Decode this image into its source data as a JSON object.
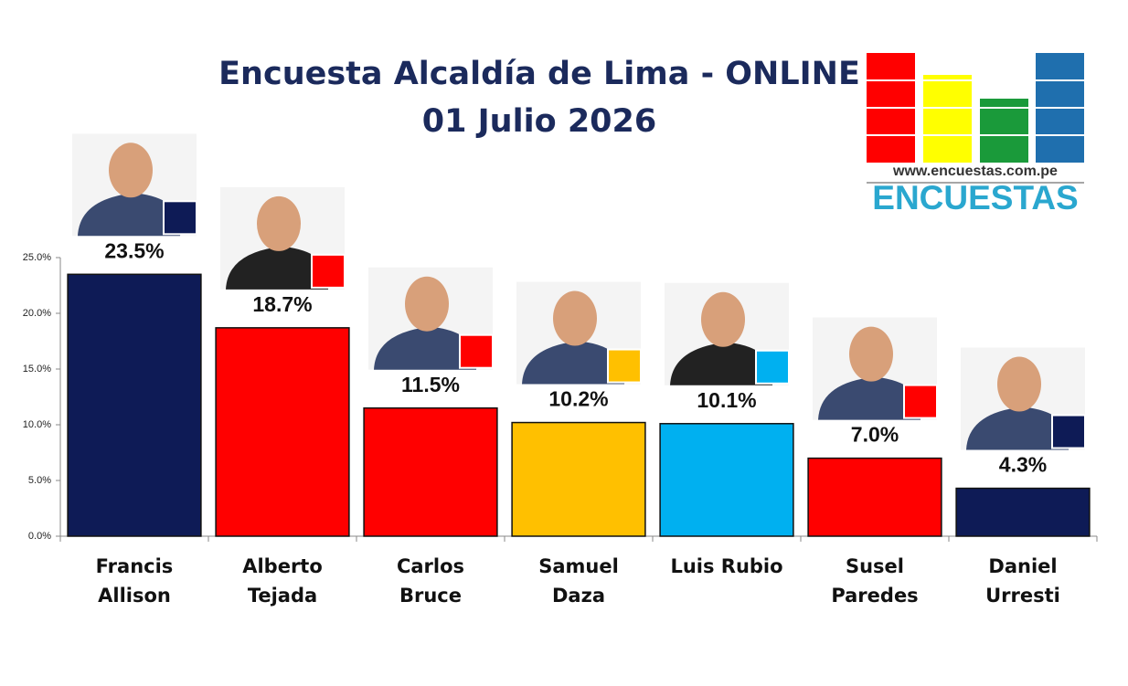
{
  "chart_data": {
    "type": "bar",
    "title": "Encuesta Alcaldía de Lima - ONLINE",
    "subtitle": "01 Julio 2026",
    "brand_url": "www.encuestas.com.pe",
    "brand_name": "ENCUESTAS",
    "categories": [
      "Francis Allison",
      "Alberto Tejada",
      "Carlos Bruce",
      "Samuel Daza",
      "Luis Rubio",
      "Susel Paredes",
      "Daniel Urresti"
    ],
    "values": [
      23.5,
      18.7,
      11.5,
      10.2,
      10.1,
      7.0,
      4.3
    ],
    "value_labels": [
      "23.5%",
      "18.7%",
      "11.5%",
      "10.2%",
      "10.1%",
      "7.0%",
      "4.3%"
    ],
    "colors": [
      "#0e1b56",
      "#ff0000",
      "#ff0000",
      "#ffc000",
      "#00b0f0",
      "#ff0000",
      "#0e1b56"
    ],
    "ylim": [
      0,
      25
    ],
    "yticks": [
      {
        "value": 0,
        "label": "0.0%"
      },
      {
        "value": 5,
        "label": "5.0%"
      },
      {
        "value": 10,
        "label": "10.0%"
      },
      {
        "value": 15,
        "label": "15.0%"
      },
      {
        "value": 20,
        "label": "20.0%"
      },
      {
        "value": 25,
        "label": "25.0%"
      }
    ]
  }
}
